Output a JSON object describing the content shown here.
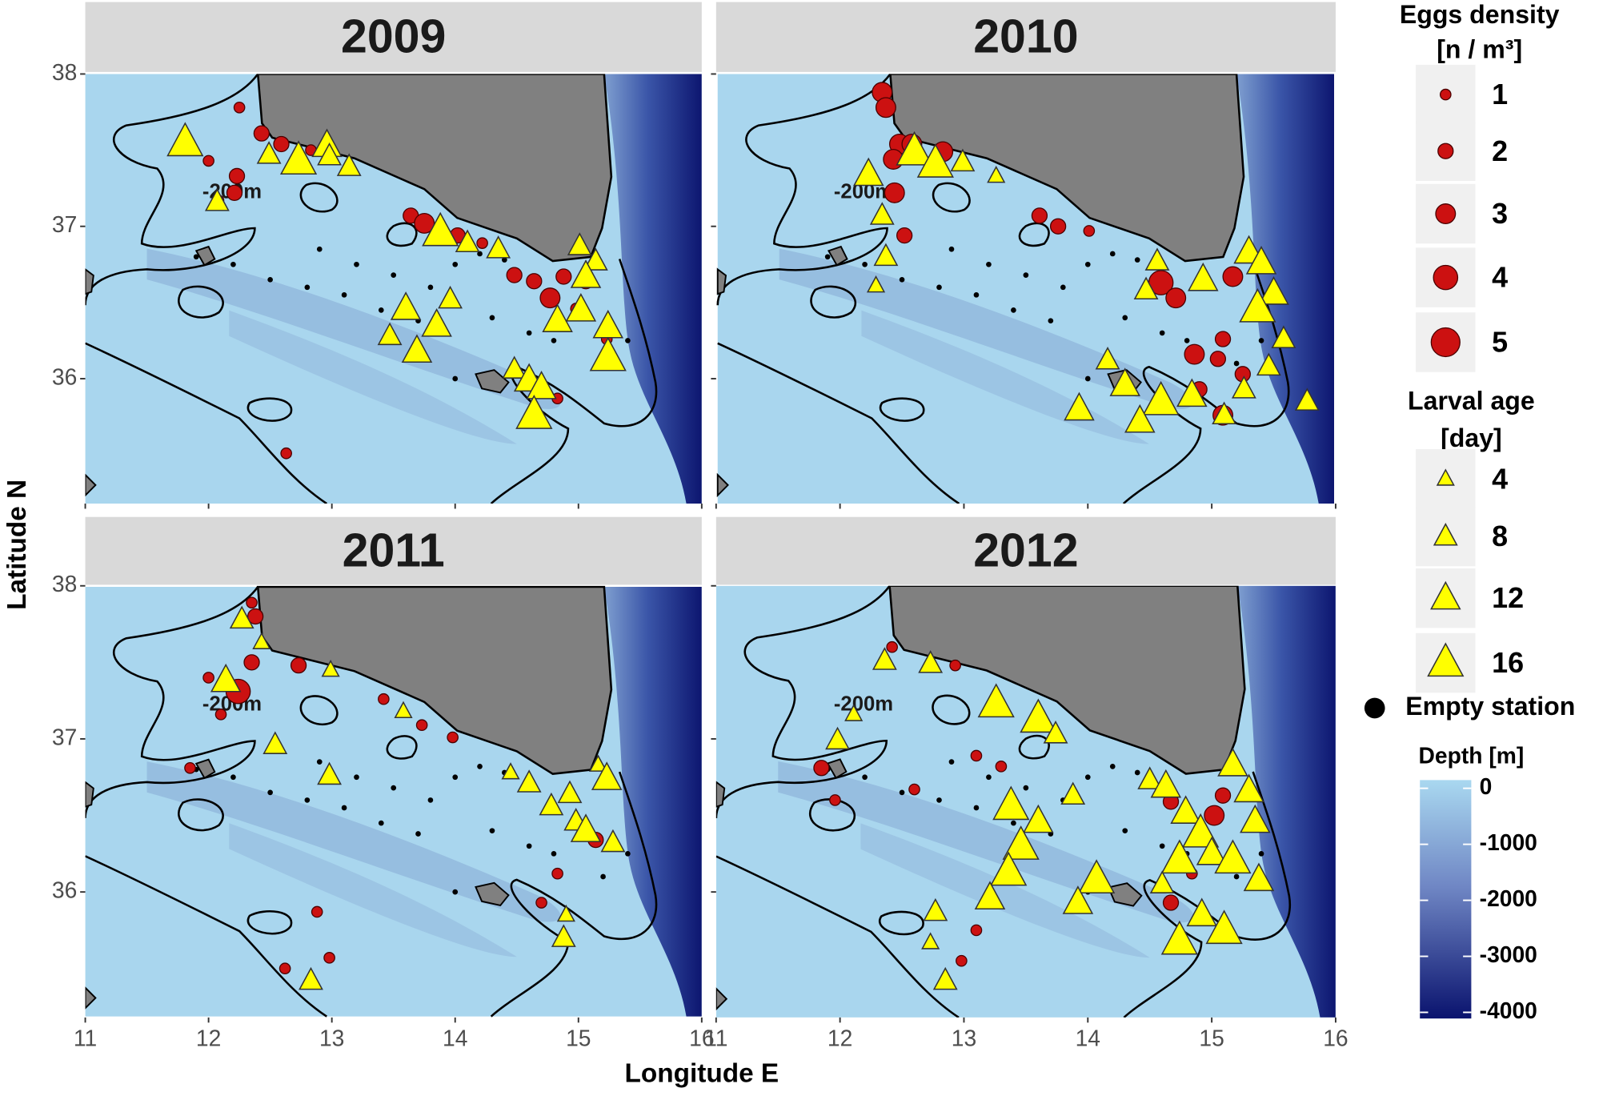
{
  "chart_data": {
    "type": "scatter",
    "x_label": "Longitude E",
    "y_label": "Latitude N",
    "xlim": [
      11,
      16
    ],
    "ylim": [
      35.18,
      38
    ],
    "xticks": [
      11,
      12,
      13,
      14,
      15,
      16
    ],
    "yticks": [
      36,
      37,
      38
    ],
    "contour_label": "-200m",
    "land_color": "#808080",
    "egg_color": "#cc1111",
    "larva_color": "#ffff00",
    "empty_color": "#000000",
    "panels": [
      {
        "title": "2009",
        "eggs": {
          "lon": [
            12.25,
            12.43,
            12.59,
            12.0,
            12.23,
            12.08,
            12.21,
            12.83,
            13.64,
            13.75,
            14.02,
            14.22,
            14.48,
            14.64,
            14.77,
            14.88,
            15.06,
            14.98,
            15.23,
            14.83,
            12.63
          ],
          "lat": [
            37.78,
            37.61,
            37.54,
            37.43,
            37.33,
            37.17,
            37.22,
            37.5,
            37.07,
            37.02,
            36.94,
            36.89,
            36.68,
            36.64,
            36.53,
            36.67,
            36.64,
            36.46,
            36.26,
            35.87,
            35.51
          ],
          "density": [
            1,
            2,
            2,
            1,
            2,
            1,
            2,
            1,
            2,
            3,
            2,
            1,
            2,
            2,
            3,
            2,
            2,
            1,
            1,
            1,
            1
          ]
        },
        "larvae": {
          "lon": [
            11.81,
            12.07,
            12.49,
            12.73,
            12.96,
            12.98,
            13.14,
            13.88,
            14.1,
            14.35,
            13.6,
            13.47,
            13.85,
            13.96,
            13.69,
            15.01,
            15.14,
            15.06,
            15.24,
            14.83,
            15.02,
            14.48,
            14.6,
            14.7,
            14.64,
            15.24
          ],
          "lat": [
            37.55,
            37.16,
            37.47,
            37.43,
            37.53,
            37.46,
            37.39,
            36.96,
            36.89,
            36.85,
            36.46,
            36.28,
            36.35,
            36.52,
            36.18,
            36.87,
            36.77,
            36.67,
            36.34,
            36.38,
            36.45,
            36.06,
            35.99,
            35.94,
            35.76,
            36.14
          ],
          "age": [
            16,
            8,
            8,
            16,
            12,
            8,
            8,
            16,
            8,
            8,
            12,
            8,
            12,
            8,
            12,
            8,
            8,
            12,
            12,
            12,
            12,
            8,
            12,
            12,
            16,
            16
          ]
        },
        "empty": {
          "lon": [
            11.9,
            12.2,
            12.5,
            12.8,
            13.1,
            13.4,
            13.7,
            12.9,
            13.2,
            13.5,
            13.8,
            14.0,
            14.2,
            14.4,
            14.6,
            14.8,
            15.2,
            15.4,
            14.3,
            14.0
          ],
          "lat": [
            36.8,
            36.75,
            36.65,
            36.6,
            36.55,
            36.45,
            36.38,
            36.85,
            36.75,
            36.68,
            36.6,
            36.75,
            36.82,
            36.78,
            36.3,
            36.25,
            36.1,
            36.25,
            36.4,
            36.0
          ]
        }
      },
      {
        "title": "2010",
        "eggs": {
          "lon": [
            12.34,
            12.37,
            12.48,
            12.43,
            12.58,
            12.83,
            12.44,
            12.52,
            13.61,
            13.76,
            14.01,
            14.59,
            14.71,
            15.17,
            14.86,
            15.05,
            14.9,
            15.09,
            15.25,
            15.09
          ],
          "lat": [
            37.88,
            37.78,
            37.54,
            37.44,
            37.54,
            37.49,
            37.22,
            36.94,
            37.07,
            37.0,
            36.97,
            36.63,
            36.53,
            36.67,
            36.16,
            36.13,
            35.93,
            35.76,
            36.03,
            36.26
          ],
          "density": [
            3,
            3,
            3,
            3,
            3,
            3,
            3,
            2,
            2,
            2,
            1,
            4,
            3,
            3,
            3,
            2,
            2,
            3,
            2,
            2
          ]
        },
        "larvae": {
          "lon": [
            12.23,
            12.34,
            12.37,
            12.29,
            12.6,
            12.77,
            12.99,
            13.26,
            14.56,
            14.47,
            14.93,
            15.3,
            15.4,
            15.5,
            15.37,
            15.58,
            15.46,
            14.16,
            14.3,
            14.59,
            14.84,
            13.93,
            14.42,
            15.1,
            15.77,
            15.26
          ],
          "lat": [
            37.34,
            37.07,
            36.8,
            36.61,
            37.49,
            37.41,
            37.42,
            37.33,
            36.77,
            36.58,
            36.65,
            36.83,
            36.76,
            36.56,
            36.46,
            36.26,
            36.08,
            36.12,
            35.96,
            35.85,
            35.89,
            35.8,
            35.72,
            35.76,
            35.85,
            35.93
          ],
          "age": [
            12,
            8,
            8,
            4,
            16,
            16,
            8,
            4,
            8,
            8,
            12,
            12,
            12,
            12,
            16,
            8,
            8,
            8,
            12,
            16,
            12,
            12,
            12,
            8,
            8,
            8
          ]
        },
        "empty": {
          "lon": [
            11.9,
            12.2,
            12.5,
            12.8,
            13.1,
            13.4,
            13.7,
            12.9,
            13.2,
            13.5,
            13.8,
            14.0,
            14.2,
            14.4,
            14.6,
            14.8,
            15.2,
            15.4,
            14.3,
            14.0
          ],
          "lat": [
            36.8,
            36.75,
            36.65,
            36.6,
            36.55,
            36.45,
            36.38,
            36.85,
            36.75,
            36.68,
            36.6,
            36.75,
            36.82,
            36.78,
            36.3,
            36.25,
            36.1,
            36.25,
            36.4,
            36.0
          ]
        }
      },
      {
        "title": "2011",
        "eggs": {
          "lon": [
            12.35,
            12.38,
            12.24,
            12.0,
            12.1,
            12.35,
            12.73,
            13.42,
            13.73,
            13.98,
            11.85,
            14.83,
            14.7,
            15.14,
            12.88,
            12.62,
            12.98
          ],
          "lat": [
            37.89,
            37.8,
            37.31,
            37.4,
            37.16,
            37.5,
            37.48,
            37.26,
            37.09,
            37.01,
            36.81,
            36.12,
            35.93,
            36.34,
            35.87,
            35.5,
            35.57
          ],
          "density": [
            1,
            2,
            4,
            1,
            1,
            2,
            2,
            1,
            1,
            1,
            1,
            1,
            1,
            2,
            1,
            1,
            1
          ]
        },
        "larvae": {
          "lon": [
            12.27,
            12.43,
            12.14,
            12.54,
            12.99,
            12.98,
            13.58,
            14.45,
            14.6,
            14.78,
            14.93,
            14.98,
            15.16,
            15.23,
            15.06,
            15.28,
            14.9,
            14.88,
            12.83
          ],
          "lat": [
            37.78,
            37.63,
            37.38,
            36.96,
            37.45,
            36.76,
            37.18,
            36.78,
            36.71,
            36.56,
            36.64,
            36.46,
            36.83,
            36.74,
            36.4,
            36.32,
            35.85,
            35.7,
            35.42
          ],
          "age": [
            8,
            4,
            12,
            8,
            4,
            8,
            4,
            4,
            8,
            8,
            8,
            8,
            4,
            12,
            12,
            8,
            4,
            8,
            8
          ]
        },
        "empty": {
          "lon": [
            11.9,
            12.2,
            12.5,
            12.8,
            13.1,
            13.4,
            13.7,
            12.9,
            13.2,
            13.5,
            13.8,
            14.0,
            14.2,
            14.4,
            14.6,
            14.8,
            15.2,
            15.4,
            14.3,
            14.0
          ],
          "lat": [
            36.8,
            36.75,
            36.65,
            36.6,
            36.55,
            36.45,
            36.38,
            36.85,
            36.75,
            36.68,
            36.6,
            36.75,
            36.82,
            36.78,
            36.3,
            36.25,
            36.1,
            36.25,
            36.4,
            36.0
          ]
        }
      },
      {
        "title": "2012",
        "eggs": {
          "lon": [
            11.85,
            12.42,
            12.93,
            13.1,
            13.3,
            11.96,
            12.6,
            14.67,
            15.02,
            15.09,
            14.84,
            14.67,
            13.1,
            12.98
          ],
          "lat": [
            36.81,
            37.6,
            37.48,
            36.89,
            36.82,
            36.6,
            36.67,
            36.59,
            36.5,
            36.63,
            36.12,
            35.93,
            35.75,
            35.55
          ],
          "density": [
            2,
            1,
            1,
            1,
            1,
            1,
            1,
            2,
            3,
            2,
            1,
            2,
            1,
            1
          ]
        },
        "larvae": {
          "lon": [
            12.11,
            11.98,
            12.36,
            12.73,
            13.26,
            13.6,
            13.74,
            13.38,
            13.6,
            13.46,
            13.36,
            13.21,
            14.07,
            13.92,
            13.88,
            14.5,
            14.63,
            14.79,
            14.91,
            14.74,
            15.0,
            15.17,
            15.38,
            14.92,
            14.74,
            15.1,
            15.17,
            15.3,
            15.35,
            14.6,
            12.77,
            12.73,
            12.85
          ],
          "lat": [
            37.16,
            36.99,
            37.51,
            37.49,
            37.23,
            37.13,
            37.03,
            36.56,
            36.46,
            36.3,
            36.13,
            35.96,
            36.08,
            35.93,
            36.63,
            36.73,
            36.69,
            36.52,
            36.38,
            36.21,
            36.25,
            36.21,
            36.08,
            35.85,
            35.68,
            35.75,
            36.83,
            36.66,
            36.46,
            36.05,
            35.87,
            35.67,
            35.42
          ],
          "age": [
            4,
            8,
            8,
            8,
            16,
            16,
            8,
            16,
            12,
            16,
            16,
            12,
            16,
            12,
            8,
            8,
            12,
            12,
            16,
            16,
            12,
            16,
            12,
            12,
            16,
            16,
            12,
            12,
            12,
            8,
            8,
            4,
            8
          ]
        },
        "empty": {
          "lon": [
            11.9,
            12.2,
            12.5,
            12.8,
            13.1,
            13.4,
            13.7,
            12.9,
            13.2,
            13.5,
            13.8,
            14.0,
            14.2,
            14.4,
            14.6,
            14.8,
            15.2,
            15.4,
            14.3,
            14.0
          ],
          "lat": [
            36.8,
            36.75,
            36.65,
            36.6,
            36.55,
            36.45,
            36.38,
            36.85,
            36.75,
            36.68,
            36.6,
            36.75,
            36.82,
            36.78,
            36.3,
            36.25,
            36.1,
            36.25,
            36.4,
            36.0
          ]
        }
      }
    ],
    "legend": {
      "eggs_title": "Eggs density",
      "eggs_unit": "[n / m³]",
      "egg_sizes": [
        1,
        2,
        3,
        4,
        5
      ],
      "larvae_title": "Larval age",
      "larvae_unit": "[day]",
      "larva_sizes": [
        4,
        8,
        12,
        16
      ],
      "empty_label": "Empty station",
      "depth_title": "Depth [m]",
      "depth_lim": [
        -4000,
        0
      ],
      "depth_ticks": [
        0,
        -1000,
        -2000,
        -3000,
        -4000
      ],
      "depth_colors": [
        "#a9d8f0",
        "#0a136e"
      ]
    }
  }
}
